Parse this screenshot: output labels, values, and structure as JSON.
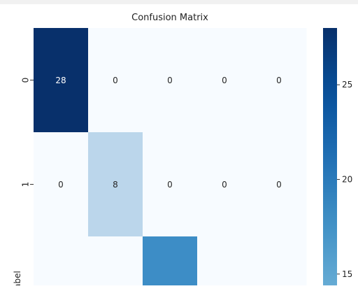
{
  "chart_data": {
    "type": "heatmap",
    "title": "Confusion Matrix",
    "ylabel": "label",
    "ylabel_visible": "abel",
    "y_tick_labels": [
      "0",
      "1"
    ],
    "columns": 5,
    "matrix": [
      [
        28,
        0,
        0,
        0,
        0
      ],
      [
        0,
        8,
        0,
        0,
        0
      ],
      [
        0,
        0,
        null,
        0,
        0
      ]
    ],
    "matrix_note": "third row is cut off; only its third cell shows a fill, with no readable number",
    "color_scale": {
      "colormap": "Blues",
      "domain": [
        0,
        28
      ],
      "low_color": "#f7fbff",
      "high_color": "#08306b"
    },
    "colorbar": {
      "ticks": [
        "25",
        "20",
        "15"
      ],
      "range_visible": [
        14.4,
        28
      ]
    },
    "cell_text_colors": {
      "dark": "#ffffff",
      "light": "#262626"
    }
  }
}
